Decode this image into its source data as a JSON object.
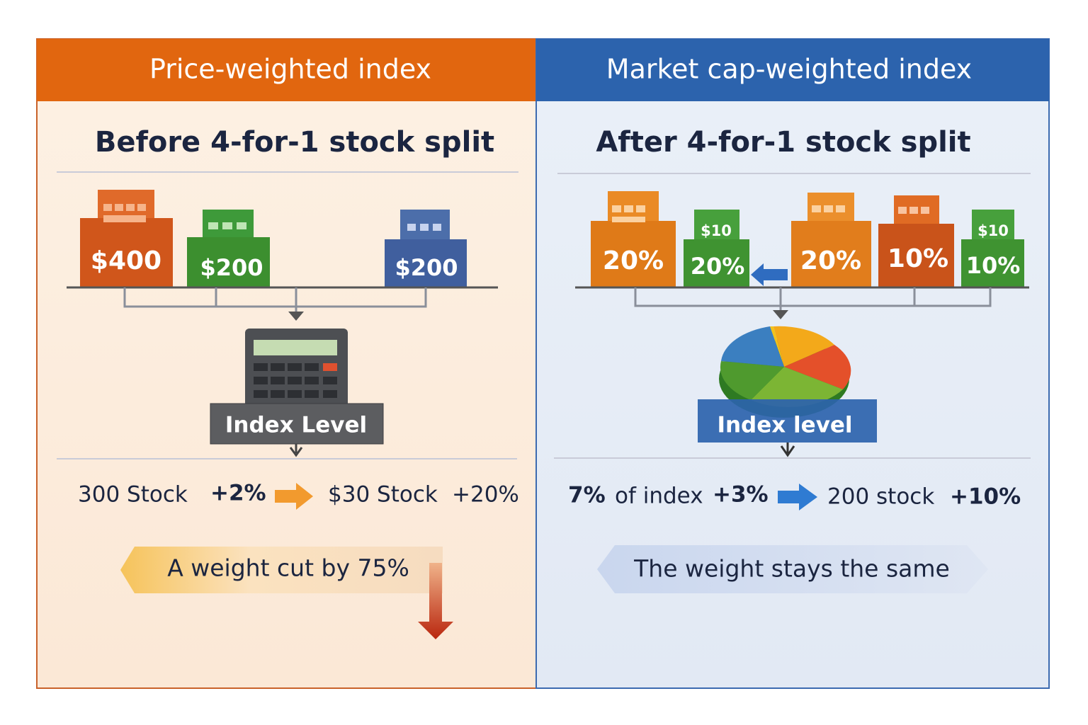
{
  "left": {
    "header": "Price-weighted index",
    "subtitle": "Before 4-for-1 stock split",
    "buildings": [
      {
        "label": "$400"
      },
      {
        "label": "$200"
      },
      {
        "label": "$200"
      }
    ],
    "result_label": "Index Level",
    "change": {
      "from": "300 Stock",
      "from_change": "+2%",
      "to": "$30 Stock",
      "to_change": "+20%"
    },
    "callout": "A weight cut by 75%"
  },
  "right": {
    "header": "Market cap-weighted index",
    "subtitle": "After 4-for-1 stock split",
    "buildings": [
      {
        "label": "20%"
      },
      {
        "sign": "$10",
        "label": "20%"
      },
      {
        "label": "20%"
      },
      {
        "label": "10%"
      },
      {
        "sign": "$10",
        "label": "10%"
      }
    ],
    "result_label": "Index level",
    "change": {
      "share": "7%",
      "share_text": "of index",
      "from_change": "+3%",
      "to": "200 stock",
      "to_change": "+10%"
    },
    "callout": "The weight stays the same"
  }
}
